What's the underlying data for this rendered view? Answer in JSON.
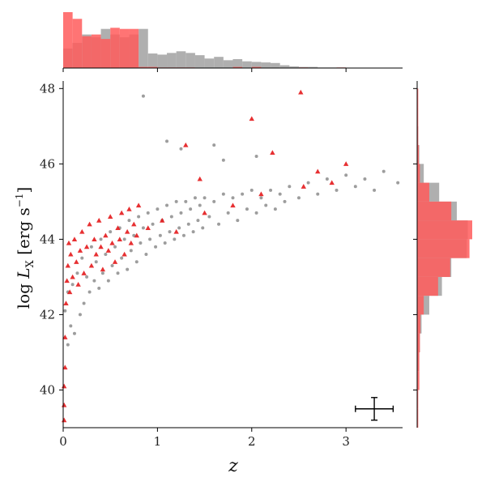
{
  "chart_data": {
    "type": "scatter",
    "title": "",
    "xlabel": "z",
    "ylabel": "log L_X [erg s^-1]",
    "xlim": [
      0,
      3.6
    ],
    "ylim": [
      39,
      48.2
    ],
    "xticks": [
      0,
      1,
      2,
      3
    ],
    "yticks": [
      40,
      42,
      44,
      46,
      48
    ],
    "x_tick_labels": [
      "0",
      "1",
      "2",
      "3"
    ],
    "y_tick_labels": [
      "40",
      "42",
      "44",
      "46",
      "48"
    ],
    "grid": false,
    "legend": "none",
    "colors": {
      "background_sample": "#8c8c8c",
      "background_hist": "#a6a6a6",
      "highlight_sample": "#e41a1c",
      "highlight_hist": "#ff5c5c"
    },
    "series": [
      {
        "marker": "circle",
        "color": "#8c8c8c",
        "points": [
          [
            0.02,
            42.1
          ],
          [
            0.05,
            41.2
          ],
          [
            0.05,
            42.6
          ],
          [
            0.08,
            41.7
          ],
          [
            0.1,
            42.8
          ],
          [
            0.12,
            41.5
          ],
          [
            0.15,
            43.1
          ],
          [
            0.18,
            42.0
          ],
          [
            0.2,
            43.5
          ],
          [
            0.22,
            42.3
          ],
          [
            0.25,
            43.0
          ],
          [
            0.28,
            42.6
          ],
          [
            0.3,
            43.8
          ],
          [
            0.33,
            42.9
          ],
          [
            0.35,
            43.4
          ],
          [
            0.38,
            42.7
          ],
          [
            0.4,
            44.0
          ],
          [
            0.42,
            43.1
          ],
          [
            0.45,
            43.6
          ],
          [
            0.48,
            42.9
          ],
          [
            0.5,
            44.2
          ],
          [
            0.52,
            43.3
          ],
          [
            0.55,
            43.8
          ],
          [
            0.58,
            43.1
          ],
          [
            0.6,
            44.3
          ],
          [
            0.62,
            43.5
          ],
          [
            0.65,
            44.0
          ],
          [
            0.68,
            43.2
          ],
          [
            0.7,
            44.5
          ],
          [
            0.72,
            43.7
          ],
          [
            0.75,
            44.1
          ],
          [
            0.78,
            43.4
          ],
          [
            0.8,
            44.6
          ],
          [
            0.82,
            43.9
          ],
          [
            0.85,
            44.3
          ],
          [
            0.88,
            43.6
          ],
          [
            0.9,
            44.7
          ],
          [
            0.92,
            44.0
          ],
          [
            0.95,
            44.4
          ],
          [
            0.98,
            43.8
          ],
          [
            1.0,
            44.8
          ],
          [
            1.03,
            44.1
          ],
          [
            1.05,
            44.5
          ],
          [
            1.08,
            43.9
          ],
          [
            1.1,
            44.9
          ],
          [
            1.13,
            44.2
          ],
          [
            1.15,
            44.6
          ],
          [
            1.18,
            44.0
          ],
          [
            1.2,
            45.0
          ],
          [
            1.23,
            44.3
          ],
          [
            1.25,
            44.7
          ],
          [
            1.28,
            44.1
          ],
          [
            1.3,
            45.0
          ],
          [
            1.33,
            44.4
          ],
          [
            1.35,
            44.8
          ],
          [
            1.38,
            44.2
          ],
          [
            1.4,
            45.1
          ],
          [
            1.43,
            44.5
          ],
          [
            1.45,
            44.9
          ],
          [
            1.48,
            44.3
          ],
          [
            1.5,
            45.1
          ],
          [
            1.55,
            44.6
          ],
          [
            1.6,
            45.0
          ],
          [
            1.65,
            44.4
          ],
          [
            1.7,
            45.2
          ],
          [
            1.75,
            44.7
          ],
          [
            1.8,
            45.1
          ],
          [
            1.85,
            44.5
          ],
          [
            1.9,
            45.2
          ],
          [
            1.95,
            44.8
          ],
          [
            2.0,
            45.3
          ],
          [
            2.05,
            44.7
          ],
          [
            2.1,
            45.1
          ],
          [
            2.15,
            44.9
          ],
          [
            2.2,
            45.3
          ],
          [
            2.25,
            44.8
          ],
          [
            2.3,
            45.2
          ],
          [
            2.35,
            45.0
          ],
          [
            2.4,
            45.4
          ],
          [
            2.5,
            45.1
          ],
          [
            2.6,
            45.5
          ],
          [
            2.7,
            45.2
          ],
          [
            2.8,
            45.6
          ],
          [
            2.9,
            45.3
          ],
          [
            3.0,
            45.7
          ],
          [
            3.1,
            45.4
          ],
          [
            3.2,
            45.6
          ],
          [
            3.3,
            45.3
          ],
          [
            3.4,
            45.8
          ],
          [
            3.55,
            45.5
          ],
          [
            0.85,
            47.8
          ],
          [
            1.25,
            46.4
          ],
          [
            1.6,
            46.5
          ],
          [
            2.05,
            46.2
          ],
          [
            1.7,
            46.1
          ],
          [
            1.1,
            46.6
          ]
        ]
      },
      {
        "marker": "triangle",
        "color": "#e41a1c",
        "points": [
          [
            0.01,
            39.2
          ],
          [
            0.01,
            39.6
          ],
          [
            0.01,
            40.1
          ],
          [
            0.02,
            40.6
          ],
          [
            0.02,
            41.4
          ],
          [
            0.03,
            42.3
          ],
          [
            0.04,
            42.9
          ],
          [
            0.05,
            43.3
          ],
          [
            0.06,
            43.9
          ],
          [
            0.07,
            42.6
          ],
          [
            0.08,
            43.6
          ],
          [
            0.1,
            43.0
          ],
          [
            0.12,
            44.0
          ],
          [
            0.14,
            43.4
          ],
          [
            0.16,
            42.8
          ],
          [
            0.18,
            43.7
          ],
          [
            0.2,
            44.2
          ],
          [
            0.22,
            43.1
          ],
          [
            0.25,
            43.8
          ],
          [
            0.28,
            44.4
          ],
          [
            0.3,
            43.3
          ],
          [
            0.33,
            44.0
          ],
          [
            0.35,
            43.6
          ],
          [
            0.38,
            44.5
          ],
          [
            0.4,
            43.8
          ],
          [
            0.42,
            43.2
          ],
          [
            0.45,
            44.1
          ],
          [
            0.48,
            43.7
          ],
          [
            0.5,
            44.6
          ],
          [
            0.52,
            43.9
          ],
          [
            0.55,
            43.4
          ],
          [
            0.58,
            44.3
          ],
          [
            0.6,
            44.0
          ],
          [
            0.62,
            44.7
          ],
          [
            0.65,
            43.6
          ],
          [
            0.68,
            44.2
          ],
          [
            0.7,
            44.8
          ],
          [
            0.72,
            43.9
          ],
          [
            0.75,
            44.4
          ],
          [
            0.78,
            44.1
          ],
          [
            0.8,
            44.9
          ],
          [
            0.9,
            44.3
          ],
          [
            1.05,
            44.5
          ],
          [
            1.2,
            44.2
          ],
          [
            1.5,
            44.7
          ],
          [
            1.8,
            44.9
          ],
          [
            1.45,
            45.6
          ],
          [
            1.3,
            46.5
          ],
          [
            2.0,
            47.2
          ],
          [
            2.22,
            46.3
          ],
          [
            2.52,
            47.9
          ],
          [
            2.55,
            45.4
          ],
          [
            2.7,
            45.8
          ],
          [
            3.0,
            46.0
          ],
          [
            2.85,
            45.5
          ],
          [
            2.1,
            45.2
          ]
        ]
      }
    ],
    "top_histogram": {
      "bin_edges": [
        0,
        0.1,
        0.2,
        0.3,
        0.4,
        0.5,
        0.6,
        0.7,
        0.8,
        0.9,
        1.0,
        1.1,
        1.2,
        1.3,
        1.4,
        1.5,
        1.6,
        1.7,
        1.8,
        1.9,
        2.0,
        2.1,
        2.2,
        2.3,
        2.4,
        2.5,
        2.6,
        2.7,
        2.8,
        2.9,
        3.0
      ],
      "background_counts": [
        0.35,
        0.45,
        0.6,
        0.55,
        0.7,
        0.6,
        0.55,
        0.6,
        0.7,
        0.26,
        0.24,
        0.27,
        0.3,
        0.27,
        0.23,
        0.17,
        0.2,
        0.14,
        0.16,
        0.12,
        0.11,
        0.1,
        0.09,
        0.05,
        0.03,
        0.02,
        0.02,
        0.01,
        0.01,
        0.01
      ],
      "highlight_counts": [
        1.0,
        0.88,
        0.57,
        0.6,
        0.52,
        0.72,
        0.7,
        0.7,
        0.02,
        0.02,
        0.01,
        0.01,
        0.01,
        0.01,
        0.0,
        0.0,
        0.0,
        0.0,
        0.02,
        0.0,
        0.02,
        0.0,
        0.0,
        0.0,
        0.0,
        0.01,
        0.0,
        0.0,
        0.0,
        0.01
      ]
    },
    "right_histogram": {
      "bin_edges": [
        39.0,
        39.5,
        40.0,
        40.5,
        41.0,
        41.5,
        42.0,
        42.5,
        43.0,
        43.5,
        44.0,
        44.5,
        45.0,
        45.5,
        46.0,
        46.5,
        47.0,
        47.5,
        48.0
      ],
      "background_counts": [
        0.0,
        0.0,
        0.01,
        0.03,
        0.05,
        0.08,
        0.22,
        0.45,
        0.62,
        0.9,
        0.92,
        0.72,
        0.4,
        0.12,
        0.04,
        0.02,
        0.01,
        0.0
      ],
      "highlight_counts": [
        0.02,
        0.02,
        0.04,
        0.04,
        0.05,
        0.06,
        0.12,
        0.38,
        0.6,
        0.95,
        1.0,
        0.62,
        0.22,
        0.05,
        0.03,
        0.02,
        0.02,
        0.02
      ]
    },
    "error_bar": {
      "x": 3.3,
      "y": 39.5,
      "x_err": 0.2,
      "y_err": 0.3
    }
  }
}
